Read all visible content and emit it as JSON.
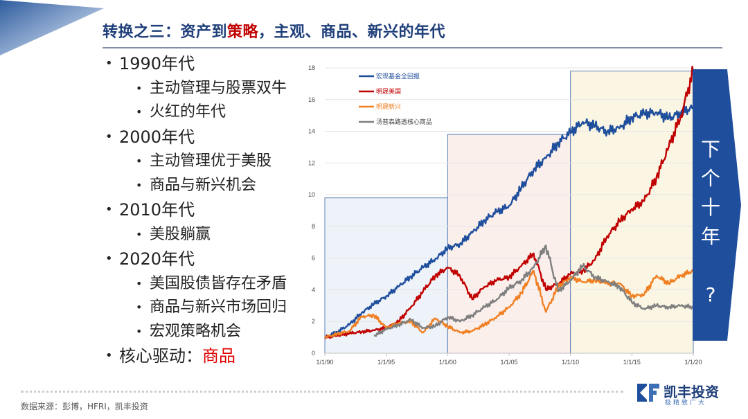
{
  "title": {
    "prefix": "转换之三：资产到",
    "highlight": "策略",
    "suffix": "，主观、商品、新兴的年代"
  },
  "bullets": [
    {
      "level": 1,
      "text": "1990年代"
    },
    {
      "level": 2,
      "text": "主动管理与股票双牛"
    },
    {
      "level": 2,
      "text": "火红的年代"
    },
    {
      "level": 1,
      "text": "2000年代"
    },
    {
      "level": 2,
      "text": "主动管理优于美股"
    },
    {
      "level": 2,
      "text": "商品与新兴机会"
    },
    {
      "level": 1,
      "text": "2010年代"
    },
    {
      "level": 2,
      "text": "美股躺赢"
    },
    {
      "level": 1,
      "text": "2020年代"
    },
    {
      "level": 2,
      "text": "美国股债皆存在矛盾"
    },
    {
      "level": 2,
      "text": "商品与新兴市场回归"
    },
    {
      "level": 2,
      "text": "宏观策略机会"
    },
    {
      "level": 1,
      "text": "核心驱动：",
      "highlight": "商品"
    }
  ],
  "arrow": {
    "text": [
      "下",
      "个",
      "十",
      "年",
      "",
      "?"
    ],
    "color": "#1f4e9c"
  },
  "source": "数据来源：彭博，HFRI，凯丰投资",
  "logo": {
    "name": "凯丰投资",
    "slogan": "极精致广大"
  },
  "colors": {
    "accent": "#c00000",
    "title": "#1f3f7a"
  },
  "chart_data": {
    "type": "line",
    "ylim": [
      0,
      18
    ],
    "yticks": [
      0,
      2,
      4,
      6,
      8,
      10,
      12,
      14,
      16,
      18
    ],
    "xlim": [
      1990,
      2020
    ],
    "xticks": [
      {
        "x": 1990,
        "label": "1/1/90"
      },
      {
        "x": 1995,
        "label": "1/1/95"
      },
      {
        "x": 2000,
        "label": "1/1/00"
      },
      {
        "x": 2005,
        "label": "1/1/05"
      },
      {
        "x": 2010,
        "label": "1/1/10"
      },
      {
        "x": 2015,
        "label": "1/1/15"
      },
      {
        "x": 2020,
        "label": "1/1/20"
      }
    ],
    "legend_position": "top-left",
    "highlight_regions": [
      {
        "x0": 1990,
        "x1": 2000,
        "ymax": 9.8,
        "fill": "#eef3f9"
      },
      {
        "x0": 2000,
        "x1": 2010,
        "ymax": 13.8,
        "fill": "#fbefec"
      },
      {
        "x0": 2010,
        "x1": 2020,
        "ymax": 17.8,
        "fill": "#fbf6e4"
      }
    ],
    "series": [
      {
        "name": "宏观基金全回报",
        "color": "#1f4e9c",
        "x": [
          1990,
          1991,
          1992,
          1993,
          1994,
          1995,
          1996,
          1997,
          1998,
          1999,
          2000,
          2001,
          2002,
          2003,
          2004,
          2005,
          2006,
          2007,
          2008,
          2009,
          2010,
          2011,
          2012,
          2013,
          2014,
          2015,
          2016,
          2017,
          2018,
          2019,
          2020
        ],
        "y": [
          1.0,
          1.35,
          1.8,
          2.55,
          3.1,
          3.6,
          4.2,
          4.85,
          5.4,
          5.95,
          6.6,
          6.9,
          7.6,
          8.4,
          8.9,
          9.3,
          10.4,
          11.6,
          12.3,
          13.3,
          13.9,
          14.6,
          14.3,
          14.0,
          14.2,
          14.9,
          15.1,
          15.2,
          14.8,
          15.2,
          15.5
        ]
      },
      {
        "name": "明晟美国",
        "color": "#c00000",
        "x": [
          1990,
          1991,
          1992,
          1993,
          1994,
          1995,
          1996,
          1997,
          1998,
          1999,
          2000,
          2001,
          2002,
          2003,
          2004,
          2005,
          2006,
          2007,
          2008,
          2009,
          2010,
          2011,
          2012,
          2013,
          2014,
          2015,
          2016,
          2017,
          2018,
          2019,
          2020
        ],
        "y": [
          1.0,
          1.1,
          1.25,
          1.35,
          1.45,
          1.6,
          2.0,
          2.9,
          3.9,
          4.9,
          5.4,
          4.9,
          3.4,
          4.2,
          4.6,
          4.8,
          5.5,
          6.3,
          4.0,
          4.4,
          5.0,
          5.2,
          5.9,
          7.4,
          8.3,
          9.1,
          9.6,
          11.1,
          13.0,
          15.0,
          17.8
        ]
      },
      {
        "name": "明晟新兴",
        "color": "#f07f22",
        "x": [
          1990,
          1991,
          1992,
          1993,
          1994,
          1995,
          1996,
          1997,
          1998,
          1999,
          2000,
          2001,
          2002,
          2003,
          2004,
          2005,
          2006,
          2007,
          2008,
          2009,
          2010,
          2011,
          2012,
          2013,
          2014,
          2015,
          2016,
          2017,
          2018,
          2019,
          2020
        ],
        "y": [
          1.0,
          1.2,
          1.4,
          2.3,
          2.4,
          1.6,
          1.9,
          2.0,
          1.3,
          2.2,
          1.7,
          1.3,
          1.4,
          1.8,
          2.3,
          2.9,
          3.8,
          5.2,
          2.6,
          4.2,
          4.8,
          4.5,
          4.6,
          4.4,
          4.4,
          3.6,
          3.7,
          4.9,
          4.4,
          4.9,
          5.2
        ]
      },
      {
        "name": "汤普森路透核心商品",
        "color": "#7f7f7f",
        "x": [
          1994,
          1995,
          1996,
          1997,
          1998,
          1999,
          2000,
          2001,
          2002,
          2003,
          2004,
          2005,
          2006,
          2007,
          2008,
          2009,
          2010,
          2011,
          2012,
          2013,
          2014,
          2015,
          2016,
          2017,
          2018,
          2019,
          2020
        ],
        "y": [
          1.1,
          1.5,
          1.8,
          2.1,
          1.6,
          1.7,
          2.3,
          2.0,
          2.4,
          2.9,
          3.4,
          4.1,
          4.6,
          5.4,
          6.8,
          3.9,
          4.6,
          5.5,
          4.8,
          4.5,
          4.2,
          3.2,
          2.8,
          3.0,
          2.9,
          3.0,
          2.9
        ]
      }
    ]
  }
}
